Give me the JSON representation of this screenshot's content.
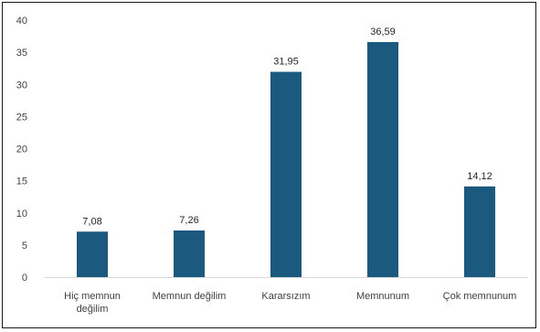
{
  "chart_data": {
    "type": "bar",
    "categories": [
      [
        "Hiç memnun",
        "değilim"
      ],
      [
        "Memnun değilim"
      ],
      [
        "Kararsızım"
      ],
      [
        "Memnunum"
      ],
      [
        "Çok memnunum"
      ]
    ],
    "values": [
      7.08,
      7.26,
      31.95,
      36.59,
      14.12
    ],
    "value_labels": [
      "7,08",
      "7,26",
      "31,95",
      "36,59",
      "14,12"
    ],
    "yticks": [
      "0",
      "5",
      "10",
      "15",
      "20",
      "25",
      "30",
      "35",
      "40"
    ],
    "ylim": [
      0,
      40
    ],
    "grid": false,
    "bar_color": "#1b5a7e",
    "title": "",
    "xlabel": "",
    "ylabel": ""
  }
}
